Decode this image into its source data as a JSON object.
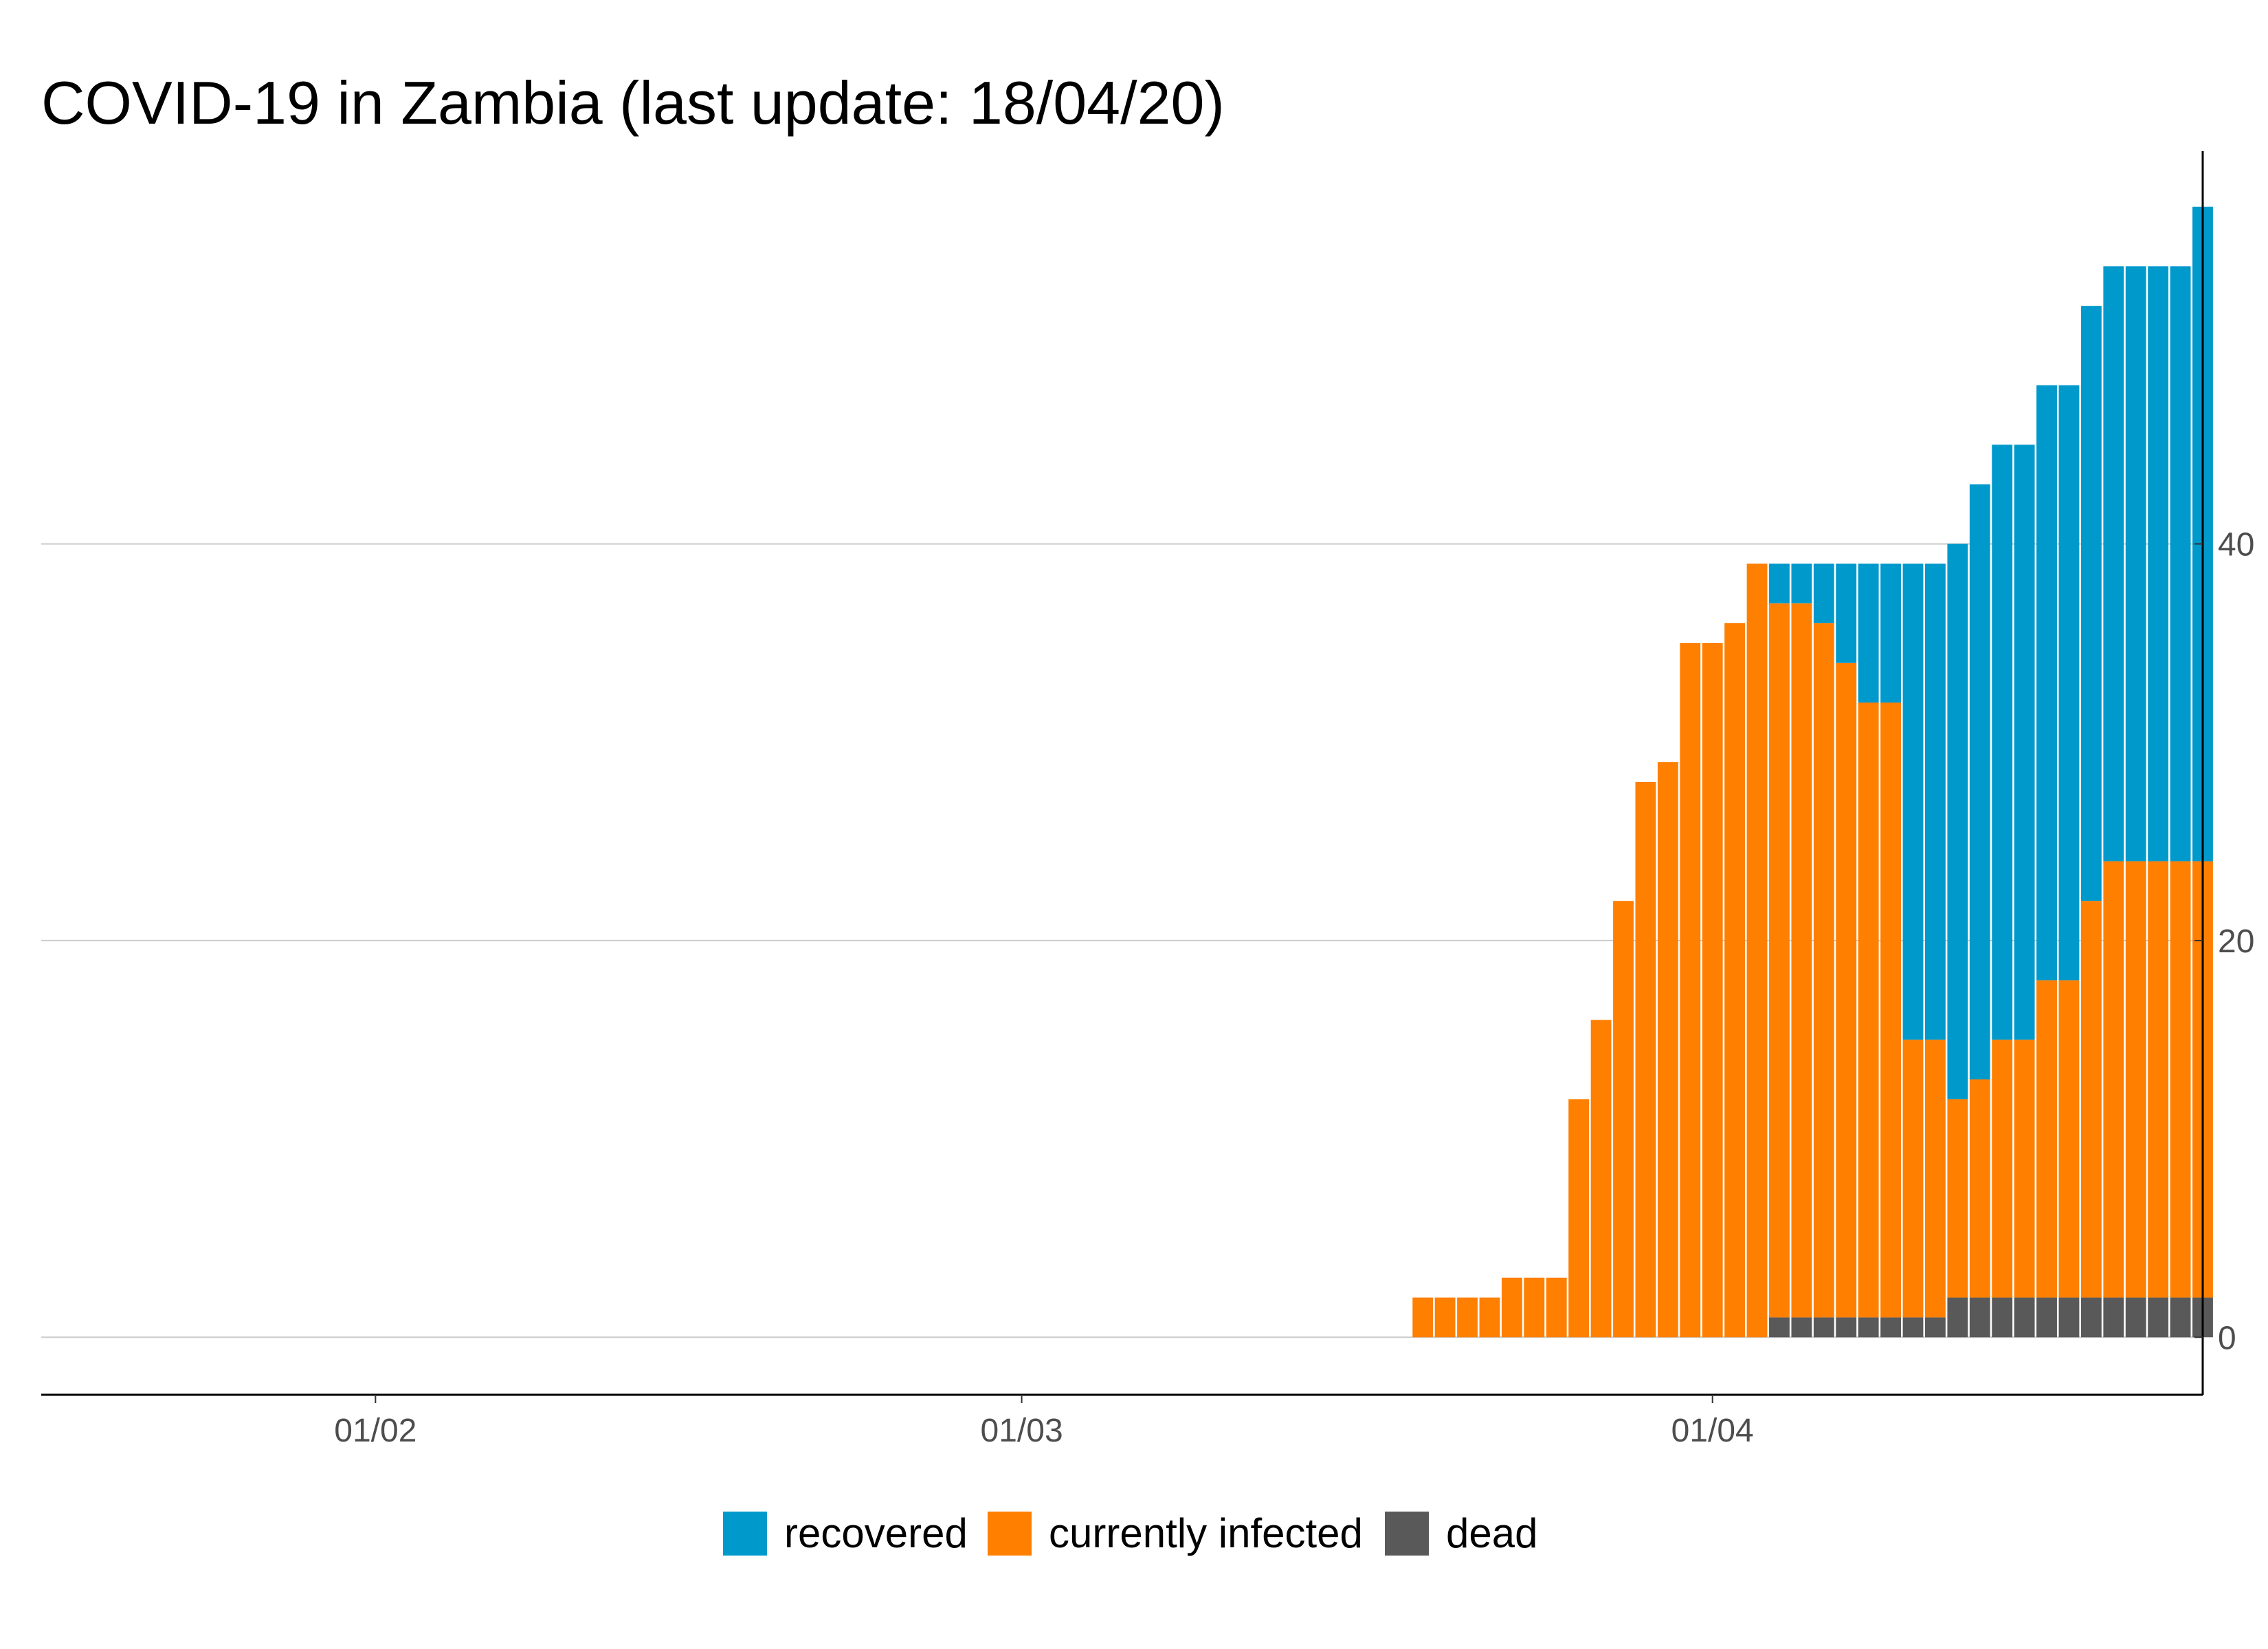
{
  "chart_data": {
    "type": "bar",
    "stacked": true,
    "title": "COVID-19 in Zambia (last update: 18/04/20)",
    "xlabel": "",
    "ylabel": "",
    "x_tick_labels": [
      {
        "date": "2020-02-01",
        "label": "01/02"
      },
      {
        "date": "2020-03-01",
        "label": "01/03"
      },
      {
        "date": "2020-04-01",
        "label": "01/04"
      }
    ],
    "xlim": [
      "2020-01-17",
      "2020-04-23"
    ],
    "y_ticks": [
      0,
      20,
      40
    ],
    "ylim": [
      -2.9,
      59.8
    ],
    "y_axis_position": "right",
    "grid": "horizontal major",
    "legend_position": "bottom",
    "dates": [
      "2020-03-19",
      "2020-03-20",
      "2020-03-21",
      "2020-03-22",
      "2020-03-23",
      "2020-03-24",
      "2020-03-25",
      "2020-03-26",
      "2020-03-27",
      "2020-03-28",
      "2020-03-29",
      "2020-03-30",
      "2020-03-31",
      "2020-04-01",
      "2020-04-02",
      "2020-04-03",
      "2020-04-04",
      "2020-04-05",
      "2020-04-06",
      "2020-04-07",
      "2020-04-08",
      "2020-04-09",
      "2020-04-10",
      "2020-04-11",
      "2020-04-12",
      "2020-04-13",
      "2020-04-14",
      "2020-04-15",
      "2020-04-16",
      "2020-04-17",
      "2020-04-18",
      "2020-04-19",
      "2020-04-20",
      "2020-04-21",
      "2020-04-22",
      "2020-04-23"
    ],
    "series": [
      {
        "name": "dead",
        "color": "#595959",
        "values": [
          0,
          0,
          0,
          0,
          0,
          0,
          0,
          0,
          0,
          0,
          0,
          0,
          0,
          0,
          0,
          0,
          1,
          1,
          1,
          1,
          1,
          1,
          1,
          1,
          2,
          2,
          2,
          2,
          2,
          2,
          2,
          2,
          2,
          2,
          2,
          2
        ]
      },
      {
        "name": "currently infected",
        "color": "#ff7f00",
        "values": [
          2,
          2,
          2,
          2,
          3,
          3,
          3,
          12,
          16,
          22,
          28,
          29,
          35,
          35,
          36,
          39,
          36,
          36,
          35,
          33,
          31,
          31,
          14,
          14,
          10,
          11,
          13,
          13,
          16,
          16,
          20,
          22,
          22,
          22,
          22,
          22
        ]
      },
      {
        "name": "recovered",
        "color": "#0099cc",
        "values": [
          0,
          0,
          0,
          0,
          0,
          0,
          0,
          0,
          0,
          0,
          0,
          0,
          0,
          0,
          0,
          0,
          2,
          2,
          3,
          5,
          7,
          7,
          24,
          24,
          28,
          30,
          30,
          30,
          30,
          30,
          30,
          30,
          30,
          30,
          30,
          33
        ]
      }
    ]
  }
}
